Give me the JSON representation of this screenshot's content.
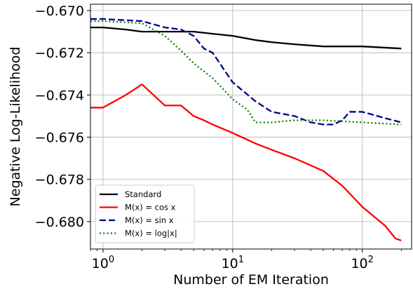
{
  "chart_data": {
    "type": "line",
    "xscale": "log",
    "xlim": [
      0.8,
      240
    ],
    "ylim": [
      -0.6813,
      -0.6697
    ],
    "xlabel": "Number of EM Iteration",
    "ylabel": "Negative Log-Likelihood",
    "x_ticks": [
      {
        "value": 1,
        "base": "10",
        "exp": "0"
      },
      {
        "value": 10,
        "base": "10",
        "exp": "1"
      },
      {
        "value": 100,
        "base": "10",
        "exp": "2"
      }
    ],
    "y_ticks": [
      {
        "value": -0.67,
        "label": "−0.670"
      },
      {
        "value": -0.672,
        "label": "−0.672"
      },
      {
        "value": -0.674,
        "label": "−0.674"
      },
      {
        "value": -0.676,
        "label": "−0.676"
      },
      {
        "value": -0.678,
        "label": "−0.678"
      },
      {
        "value": -0.68,
        "label": "−0.680"
      }
    ],
    "grid": true,
    "legend_position": "lower-left",
    "series": [
      {
        "name": "Standard",
        "color": "#000000",
        "dash": "solid",
        "points": [
          [
            0.8,
            -0.6708
          ],
          [
            1,
            -0.6708
          ],
          [
            1.5,
            -0.6709
          ],
          [
            2,
            -0.671
          ],
          [
            3,
            -0.671
          ],
          [
            4,
            -0.671
          ],
          [
            5,
            -0.671
          ],
          [
            7,
            -0.6711
          ],
          [
            10,
            -0.6712
          ],
          [
            15,
            -0.6714
          ],
          [
            20,
            -0.6715
          ],
          [
            30,
            -0.6716
          ],
          [
            50,
            -0.6717
          ],
          [
            100,
            -0.6717
          ],
          [
            200,
            -0.6718
          ]
        ]
      },
      {
        "name": "M(x) = cos x",
        "color": "#ff0000",
        "dash": "solid",
        "points": [
          [
            0.8,
            -0.6746
          ],
          [
            1,
            -0.6746
          ],
          [
            1.5,
            -0.674
          ],
          [
            2,
            -0.6735
          ],
          [
            3,
            -0.6745
          ],
          [
            4,
            -0.6745
          ],
          [
            5,
            -0.675
          ],
          [
            6,
            -0.6752
          ],
          [
            7,
            -0.6754
          ],
          [
            10,
            -0.6758
          ],
          [
            15,
            -0.6763
          ],
          [
            20,
            -0.6766
          ],
          [
            30,
            -0.677
          ],
          [
            50,
            -0.6776
          ],
          [
            70,
            -0.6783
          ],
          [
            100,
            -0.6793
          ],
          [
            150,
            -0.6802
          ],
          [
            180,
            -0.6808
          ],
          [
            200,
            -0.6809
          ]
        ]
      },
      {
        "name": "M(x) = sin x",
        "color": "#00008b",
        "dash": "dashed",
        "points": [
          [
            0.8,
            -0.6704
          ],
          [
            1,
            -0.6704
          ],
          [
            2,
            -0.6705
          ],
          [
            3,
            -0.6708
          ],
          [
            4,
            -0.6709
          ],
          [
            5,
            -0.6712
          ],
          [
            6,
            -0.6718
          ],
          [
            7,
            -0.672
          ],
          [
            10,
            -0.6734
          ],
          [
            15,
            -0.6743
          ],
          [
            20,
            -0.6748
          ],
          [
            30,
            -0.675
          ],
          [
            40,
            -0.6753
          ],
          [
            50,
            -0.6754
          ],
          [
            60,
            -0.6754
          ],
          [
            70,
            -0.6752
          ],
          [
            80,
            -0.6748
          ],
          [
            100,
            -0.6748
          ],
          [
            150,
            -0.6751
          ],
          [
            200,
            -0.6753
          ]
        ]
      },
      {
        "name": "M(x) = log|x|",
        "color": "#008000",
        "dash": "dotted",
        "points": [
          [
            0.8,
            -0.6705
          ],
          [
            1,
            -0.6705
          ],
          [
            2,
            -0.6706
          ],
          [
            3,
            -0.6712
          ],
          [
            4,
            -0.6719
          ],
          [
            5,
            -0.6725
          ],
          [
            7,
            -0.6732
          ],
          [
            10,
            -0.6742
          ],
          [
            13,
            -0.6747
          ],
          [
            15,
            -0.6753
          ],
          [
            20,
            -0.6753
          ],
          [
            30,
            -0.6752
          ],
          [
            50,
            -0.6752
          ],
          [
            100,
            -0.6753
          ],
          [
            200,
            -0.6754
          ]
        ]
      }
    ]
  }
}
